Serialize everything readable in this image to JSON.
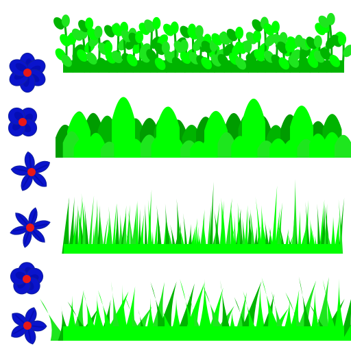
{
  "palette": {
    "petal": "#0a14cc",
    "petal_shade": "#0008a0",
    "petal_edge": "#12209e",
    "center": "#e81818",
    "grass_bright": "#00ff00",
    "grass_mid": "#1ee61e",
    "grass_dark": "#00b400",
    "grass_deep": "#009c00"
  },
  "flowers": [
    {
      "kind": "flower",
      "style": "rounded-petals",
      "petals": 6
    },
    {
      "kind": "flower",
      "style": "four-petal",
      "petals": 4
    },
    {
      "kind": "flower",
      "style": "star",
      "petals": 5
    },
    {
      "kind": "flower",
      "style": "narrow-petals",
      "petals": 6
    },
    {
      "kind": "flower",
      "style": "round-petals",
      "petals": 5
    },
    {
      "kind": "flower",
      "style": "pointed-star",
      "petals": 5
    }
  ],
  "grass_strips": [
    {
      "kind": "grass-strip",
      "style": "leafy-sprouts"
    },
    {
      "kind": "grass-strip",
      "style": "rounded-bushes"
    },
    {
      "kind": "grass-strip",
      "style": "thin-blades"
    },
    {
      "kind": "grass-strip",
      "style": "wide-blades"
    }
  ]
}
